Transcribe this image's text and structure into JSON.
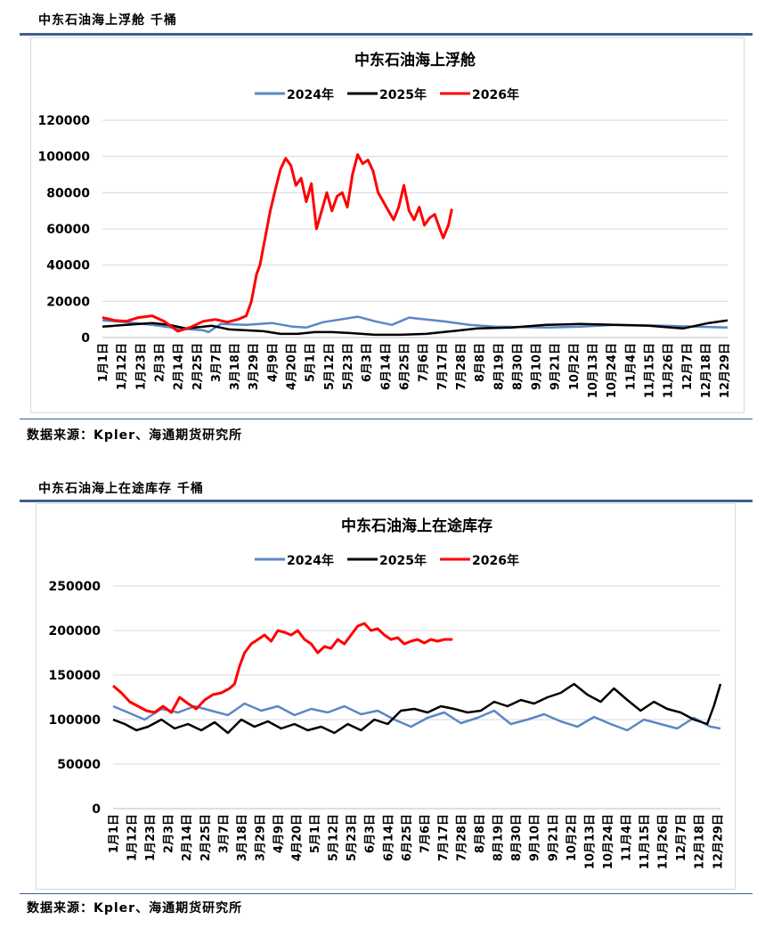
{
  "page": {
    "section1_title": "中东石油海上浮舱 千桶",
    "section2_title": "中东石油海上在途库存 千桶",
    "source1": "数据来源：Kpler、海通期货研究所",
    "source2": "数据来源：Kpler、海通期货研究所"
  },
  "colors": {
    "y2024": "#5b87c4",
    "y2025": "#000000",
    "y2026": "#ff0000",
    "rule": "#3f5f8f"
  },
  "x_tick_labels": [
    "1月1日",
    "1月12日",
    "1月23日",
    "2月3日",
    "2月14日",
    "2月25日",
    "3月7日",
    "3月18日",
    "3月29日",
    "4月9日",
    "4月20日",
    "5月1日",
    "5月12日",
    "5月23日",
    "6月3日",
    "6月14日",
    "6月25日",
    "7月6日",
    "7月17日",
    "7月28日",
    "8月8日",
    "8月19日",
    "8月30日",
    "9月10日",
    "9月21日",
    "10月2日",
    "10月13日",
    "10月24日",
    "11月4日",
    "11月15日",
    "11月26日",
    "12月7日",
    "12月18日",
    "12月29日"
  ],
  "chart_data": [
    {
      "type": "line",
      "title": "中东石油海上浮舱",
      "legend_position": "top",
      "grid": true,
      "ylim": [
        0,
        120000
      ],
      "yticks": [
        0,
        20000,
        40000,
        60000,
        80000,
        100000,
        120000
      ],
      "series": [
        {
          "name": "2024年",
          "points": [
            [
              1,
              9500
            ],
            [
              15,
              8500
            ],
            [
              30,
              7000
            ],
            [
              45,
              5000
            ],
            [
              60,
              4000
            ],
            [
              63,
              3000
            ],
            [
              70,
              7500
            ],
            [
              85,
              7000
            ],
            [
              100,
              8000
            ],
            [
              112,
              6000
            ],
            [
              120,
              5500
            ],
            [
              130,
              8500
            ],
            [
              140,
              10000
            ],
            [
              150,
              11500
            ],
            [
              160,
              9000
            ],
            [
              170,
              7000
            ],
            [
              180,
              11000
            ],
            [
              190,
              10000
            ],
            [
              200,
              9000
            ],
            [
              215,
              7000
            ],
            [
              230,
              6000
            ],
            [
              260,
              5500
            ],
            [
              280,
              6000
            ],
            [
              300,
              7000
            ],
            [
              330,
              6500
            ],
            [
              366,
              5500
            ]
          ]
        },
        {
          "name": "2025年",
          "points": [
            [
              1,
              6000
            ],
            [
              15,
              7000
            ],
            [
              30,
              8000
            ],
            [
              40,
              7000
            ],
            [
              50,
              5000
            ],
            [
              65,
              6500
            ],
            [
              75,
              4500
            ],
            [
              85,
              4000
            ],
            [
              95,
              3500
            ],
            [
              105,
              2000
            ],
            [
              115,
              2000
            ],
            [
              125,
              3000
            ],
            [
              135,
              3000
            ],
            [
              145,
              2500
            ],
            [
              160,
              1500
            ],
            [
              175,
              1500
            ],
            [
              190,
              2000
            ],
            [
              205,
              3500
            ],
            [
              220,
              5000
            ],
            [
              240,
              5500
            ],
            [
              260,
              7000
            ],
            [
              280,
              7500
            ],
            [
              300,
              7000
            ],
            [
              320,
              6500
            ],
            [
              340,
              5000
            ],
            [
              355,
              8000
            ],
            [
              366,
              9500
            ]
          ]
        },
        {
          "name": "2026年",
          "points": [
            [
              1,
              11000
            ],
            [
              8,
              9500
            ],
            [
              15,
              9000
            ],
            [
              22,
              11000
            ],
            [
              30,
              12000
            ],
            [
              37,
              9000
            ],
            [
              45,
              3500
            ],
            [
              52,
              5500
            ],
            [
              60,
              9000
            ],
            [
              67,
              10000
            ],
            [
              74,
              8500
            ],
            [
              80,
              10000
            ],
            [
              85,
              12000
            ],
            [
              88,
              20000
            ],
            [
              91,
              35000
            ],
            [
              93,
              40000
            ],
            [
              96,
              55000
            ],
            [
              99,
              70000
            ],
            [
              102,
              82000
            ],
            [
              105,
              93000
            ],
            [
              108,
              99000
            ],
            [
              111,
              95000
            ],
            [
              114,
              84000
            ],
            [
              117,
              88000
            ],
            [
              120,
              75000
            ],
            [
              123,
              85000
            ],
            [
              126,
              60000
            ],
            [
              129,
              70000
            ],
            [
              132,
              80000
            ],
            [
              135,
              70000
            ],
            [
              138,
              78000
            ],
            [
              141,
              80000
            ],
            [
              144,
              72000
            ],
            [
              147,
              90000
            ],
            [
              150,
              101000
            ],
            [
              153,
              96000
            ],
            [
              156,
              98000
            ],
            [
              159,
              92000
            ],
            [
              162,
              80000
            ],
            [
              165,
              75000
            ],
            [
              168,
              70000
            ],
            [
              171,
              65000
            ],
            [
              174,
              72000
            ],
            [
              177,
              84000
            ],
            [
              180,
              70000
            ],
            [
              183,
              65000
            ],
            [
              186,
              72000
            ],
            [
              189,
              62000
            ],
            [
              192,
              66000
            ],
            [
              195,
              68000
            ],
            [
              198,
              60000
            ],
            [
              200,
              55000
            ],
            [
              203,
              62000
            ],
            [
              205,
              71000
            ]
          ]
        }
      ]
    },
    {
      "type": "line",
      "title": "中东石油海上在途库存",
      "legend_position": "top",
      "grid": true,
      "ylim": [
        0,
        250000
      ],
      "yticks": [
        0,
        50000,
        100000,
        150000,
        200000,
        250000
      ],
      "series": [
        {
          "name": "2024年",
          "points": [
            [
              1,
              115000
            ],
            [
              10,
              108000
            ],
            [
              20,
              100000
            ],
            [
              30,
              112000
            ],
            [
              40,
              108000
            ],
            [
              50,
              115000
            ],
            [
              60,
              110000
            ],
            [
              70,
              105000
            ],
            [
              80,
              118000
            ],
            [
              90,
              110000
            ],
            [
              100,
              115000
            ],
            [
              110,
              105000
            ],
            [
              120,
              112000
            ],
            [
              130,
              108000
            ],
            [
              140,
              115000
            ],
            [
              150,
              106000
            ],
            [
              160,
              110000
            ],
            [
              170,
              100000
            ],
            [
              180,
              92000
            ],
            [
              190,
              102000
            ],
            [
              200,
              108000
            ],
            [
              210,
              96000
            ],
            [
              220,
              102000
            ],
            [
              230,
              110000
            ],
            [
              240,
              95000
            ],
            [
              250,
              100000
            ],
            [
              260,
              106000
            ],
            [
              270,
              98000
            ],
            [
              280,
              92000
            ],
            [
              290,
              103000
            ],
            [
              300,
              95000
            ],
            [
              310,
              88000
            ],
            [
              320,
              100000
            ],
            [
              330,
              95000
            ],
            [
              340,
              90000
            ],
            [
              350,
              102000
            ],
            [
              360,
              92000
            ],
            [
              366,
              90000
            ]
          ]
        },
        {
          "name": "2025年",
          "points": [
            [
              1,
              100000
            ],
            [
              8,
              95000
            ],
            [
              15,
              88000
            ],
            [
              22,
              92000
            ],
            [
              30,
              100000
            ],
            [
              38,
              90000
            ],
            [
              46,
              95000
            ],
            [
              54,
              88000
            ],
            [
              62,
              97000
            ],
            [
              70,
              85000
            ],
            [
              78,
              100000
            ],
            [
              86,
              92000
            ],
            [
              94,
              98000
            ],
            [
              102,
              90000
            ],
            [
              110,
              95000
            ],
            [
              118,
              88000
            ],
            [
              126,
              92000
            ],
            [
              134,
              85000
            ],
            [
              142,
              95000
            ],
            [
              150,
              88000
            ],
            [
              158,
              100000
            ],
            [
              166,
              95000
            ],
            [
              174,
              110000
            ],
            [
              182,
              112000
            ],
            [
              190,
              108000
            ],
            [
              198,
              115000
            ],
            [
              206,
              112000
            ],
            [
              214,
              108000
            ],
            [
              222,
              110000
            ],
            [
              230,
              120000
            ],
            [
              238,
              115000
            ],
            [
              246,
              122000
            ],
            [
              254,
              118000
            ],
            [
              262,
              125000
            ],
            [
              270,
              130000
            ],
            [
              278,
              140000
            ],
            [
              286,
              128000
            ],
            [
              294,
              120000
            ],
            [
              302,
              135000
            ],
            [
              310,
              122000
            ],
            [
              318,
              110000
            ],
            [
              326,
              120000
            ],
            [
              334,
              112000
            ],
            [
              342,
              108000
            ],
            [
              350,
              100000
            ],
            [
              358,
              95000
            ],
            [
              362,
              115000
            ],
            [
              366,
              140000
            ]
          ]
        },
        {
          "name": "2026年",
          "points": [
            [
              1,
              138000
            ],
            [
              6,
              130000
            ],
            [
              11,
              120000
            ],
            [
              16,
              115000
            ],
            [
              21,
              110000
            ],
            [
              26,
              108000
            ],
            [
              31,
              115000
            ],
            [
              36,
              108000
            ],
            [
              41,
              125000
            ],
            [
              46,
              118000
            ],
            [
              51,
              112000
            ],
            [
              56,
              122000
            ],
            [
              61,
              128000
            ],
            [
              66,
              130000
            ],
            [
              71,
              135000
            ],
            [
              74,
              140000
            ],
            [
              77,
              160000
            ],
            [
              80,
              175000
            ],
            [
              84,
              185000
            ],
            [
              88,
              190000
            ],
            [
              92,
              195000
            ],
            [
              96,
              188000
            ],
            [
              100,
              200000
            ],
            [
              104,
              198000
            ],
            [
              108,
              195000
            ],
            [
              112,
              200000
            ],
            [
              116,
              190000
            ],
            [
              120,
              185000
            ],
            [
              124,
              175000
            ],
            [
              128,
              182000
            ],
            [
              132,
              180000
            ],
            [
              136,
              190000
            ],
            [
              140,
              185000
            ],
            [
              144,
              195000
            ],
            [
              148,
              205000
            ],
            [
              152,
              208000
            ],
            [
              156,
              200000
            ],
            [
              160,
              202000
            ],
            [
              164,
              195000
            ],
            [
              168,
              190000
            ],
            [
              172,
              192000
            ],
            [
              176,
              185000
            ],
            [
              180,
              188000
            ],
            [
              184,
              190000
            ],
            [
              188,
              186000
            ],
            [
              192,
              190000
            ],
            [
              196,
              188000
            ],
            [
              200,
              190000
            ],
            [
              205,
              190000
            ]
          ]
        }
      ]
    }
  ]
}
